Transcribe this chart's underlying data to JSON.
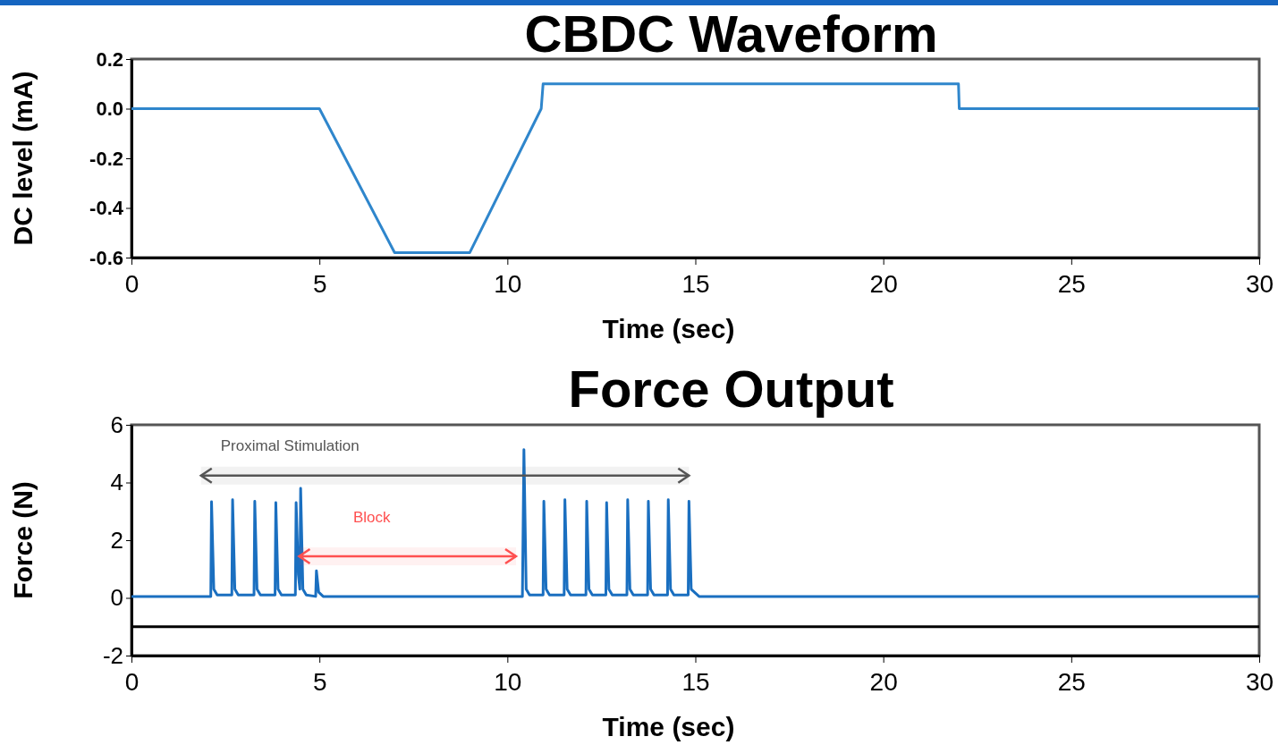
{
  "chart_data": [
    {
      "type": "line",
      "title": "CBDC Waveform",
      "xlabel": "Time (sec)",
      "ylabel": "DC level (mA)",
      "series": [
        {
          "color": "#2f86cc",
          "x": [
            0,
            5,
            7,
            9,
            10.9,
            10.95,
            22,
            22.02,
            30
          ],
          "values": [
            0,
            0,
            -0.58,
            -0.58,
            0,
            0.1,
            0.1,
            0,
            0
          ]
        }
      ],
      "xlim": [
        0,
        30
      ],
      "xticks": [
        0,
        5,
        10,
        15,
        20,
        25,
        30
      ],
      "ylim": [
        -0.6,
        0.2
      ],
      "yticks": [
        {
          "value": 0.2,
          "label": "0.2"
        },
        {
          "value": 0,
          "label": "0.0"
        },
        {
          "value": -0.2,
          "label": "-0.2"
        },
        {
          "value": -0.4,
          "label": "-0.4"
        },
        {
          "value": -0.6,
          "label": "-0.6"
        }
      ],
      "grid": false
    },
    {
      "type": "line",
      "title": "Force Output",
      "xlabel": "Time (sec)",
      "ylabel": "Force (N)",
      "series": [
        {
          "color": "#1a6fc0",
          "x": [
            0,
            2.11,
            2.13,
            2.19,
            2.28,
            2.67,
            2.69,
            2.75,
            2.84,
            3.26,
            3.28,
            3.34,
            3.43,
            3.82,
            3.84,
            3.9,
            3.99,
            4.36,
            4.38,
            4.44,
            4.48,
            4.5,
            4.56,
            4.65,
            4.9,
            4.92,
            4.98,
            5.1,
            10.4,
            10.44,
            10.5,
            10.59,
            10.95,
            10.97,
            11.03,
            11.12,
            11.51,
            11.53,
            11.59,
            11.68,
            12.09,
            12.11,
            12.17,
            12.26,
            12.62,
            12.64,
            12.7,
            12.79,
            13.18,
            13.2,
            13.26,
            13.35,
            13.73,
            13.75,
            13.81,
            13.9,
            14.26,
            14.28,
            14.34,
            14.43,
            14.81,
            14.83,
            14.89,
            15.1,
            30
          ],
          "values": [
            0.05,
            0.05,
            3.33,
            0.3,
            0.1,
            0.1,
            3.4,
            0.3,
            0.1,
            0.1,
            3.35,
            0.3,
            0.1,
            0.1,
            3.3,
            0.3,
            0.1,
            0.1,
            3.3,
            0.8,
            0.3,
            3.8,
            0.3,
            0.1,
            0.05,
            0.94,
            0.2,
            0.05,
            0.05,
            5.14,
            0.3,
            0.1,
            0.1,
            3.35,
            0.3,
            0.1,
            0.1,
            3.4,
            0.3,
            0.1,
            0.1,
            3.35,
            0.3,
            0.1,
            0.1,
            3.3,
            0.3,
            0.1,
            0.1,
            3.4,
            0.3,
            0.1,
            0.1,
            3.35,
            0.3,
            0.1,
            0.1,
            3.4,
            0.3,
            0.1,
            0.1,
            3.35,
            0.3,
            0.05,
            0.05
          ]
        }
      ],
      "xlim": [
        0,
        30
      ],
      "xticks": [
        0,
        5,
        10,
        15,
        20,
        25,
        30
      ],
      "ylim": [
        -2,
        6
      ],
      "yticks": [
        -2,
        0,
        2,
        4,
        6
      ],
      "grid": false,
      "ref_lines": [
        {
          "axis": "y",
          "value": -1,
          "color": "#000000"
        }
      ],
      "bands": [
        {
          "axis": "x",
          "from": 1.85,
          "to": 14.83,
          "label": "Proximal Stimulation",
          "color": "#555555"
        },
        {
          "axis": "x",
          "from": 4.46,
          "to": 10.23,
          "label": "Block",
          "color": "#ff5050"
        }
      ]
    }
  ]
}
